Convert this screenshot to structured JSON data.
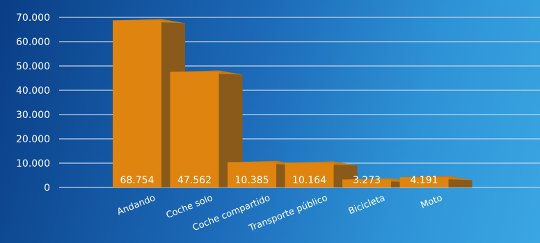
{
  "chart_data": {
    "type": "bar",
    "categories": [
      "Andando",
      "Coche solo",
      "Coche compartido",
      "Transporte público",
      "Bicicleta",
      "Moto"
    ],
    "values": [
      68754,
      47562,
      10385,
      10164,
      3273,
      4191
    ],
    "value_labels": [
      "68.754",
      "47.562",
      "10.385",
      "10.164",
      "3.273",
      "4.191"
    ],
    "ylim": [
      0,
      70000
    ],
    "y_ticks": [
      0,
      10000,
      20000,
      30000,
      40000,
      50000,
      60000,
      70000
    ],
    "y_tick_labels": [
      "0",
      "10.000",
      "20.000",
      "30.000",
      "40.000",
      "50.000",
      "60.000",
      "70.000"
    ],
    "grid": true,
    "legend": "none",
    "title": "",
    "xlabel": "",
    "ylabel": "",
    "colors": {
      "bar_front": "#e08410",
      "bar_side": "#8a5a1a",
      "bar_top": "#c97a12",
      "grid": "#c7d4e4",
      "text": "#ffffff"
    }
  }
}
